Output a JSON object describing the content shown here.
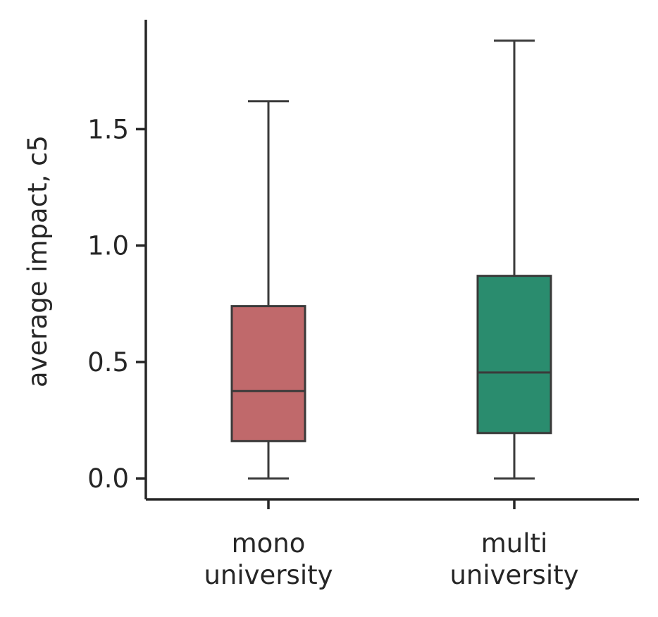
{
  "chart_data": {
    "type": "boxplot",
    "title": "",
    "xlabel": "",
    "ylabel": "average impact, c5",
    "ylim": [
      -0.09,
      1.97
    ],
    "y_ticks": [
      {
        "value": 0.0,
        "label": "0.0"
      },
      {
        "value": 0.5,
        "label": "0.5"
      },
      {
        "value": 1.0,
        "label": "1.0"
      },
      {
        "value": 1.5,
        "label": "1.5"
      }
    ],
    "categories": [
      {
        "lines": [
          "mono",
          "university"
        ]
      },
      {
        "lines": [
          "multi",
          "university"
        ]
      }
    ],
    "boxes": [
      {
        "category": "mono university",
        "whisker_low": 0.0,
        "q1": 0.16,
        "median": 0.375,
        "q3": 0.74,
        "whisker_high": 1.62,
        "color": "#c0696b"
      },
      {
        "category": "multi university",
        "whisker_low": 0.0,
        "q1": 0.195,
        "median": 0.455,
        "q3": 0.87,
        "whisker_high": 1.88,
        "color": "#2a8c6e"
      }
    ],
    "grid": false,
    "legend": "none"
  },
  "style": {
    "axis_color": "#262626",
    "box_edge_color": "#3a3a3a"
  }
}
